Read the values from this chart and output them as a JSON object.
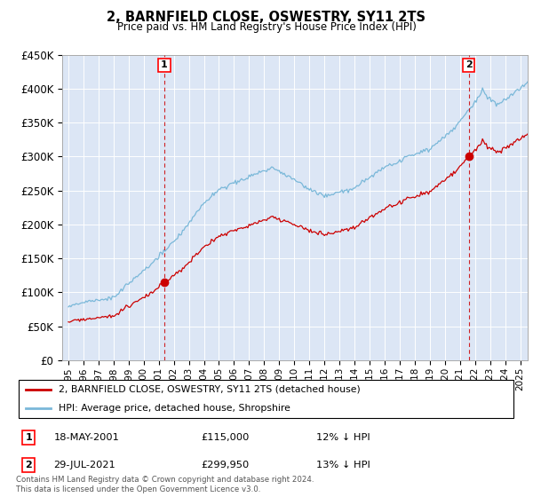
{
  "title": "2, BARNFIELD CLOSE, OSWESTRY, SY11 2TS",
  "subtitle": "Price paid vs. HM Land Registry's House Price Index (HPI)",
  "sale1_date": "18-MAY-2001",
  "sale1_price": 115000,
  "sale1_label": "12% ↓ HPI",
  "sale1_x": 2001.37,
  "sale2_date": "29-JUL-2021",
  "sale2_price": 299950,
  "sale2_label": "13% ↓ HPI",
  "sale2_x": 2021.58,
  "legend_line1": "2, BARNFIELD CLOSE, OSWESTRY, SY11 2TS (detached house)",
  "legend_line2": "HPI: Average price, detached house, Shropshire",
  "footer": "Contains HM Land Registry data © Crown copyright and database right 2024.\nThis data is licensed under the Open Government Licence v3.0.",
  "hpi_color": "#7ab8d9",
  "price_color": "#cc0000",
  "dashed_color": "#cc0000",
  "bg_color": "#dce6f5",
  "ylim_max": 450000,
  "xlim_min": 1994.6,
  "xlim_max": 2025.5
}
